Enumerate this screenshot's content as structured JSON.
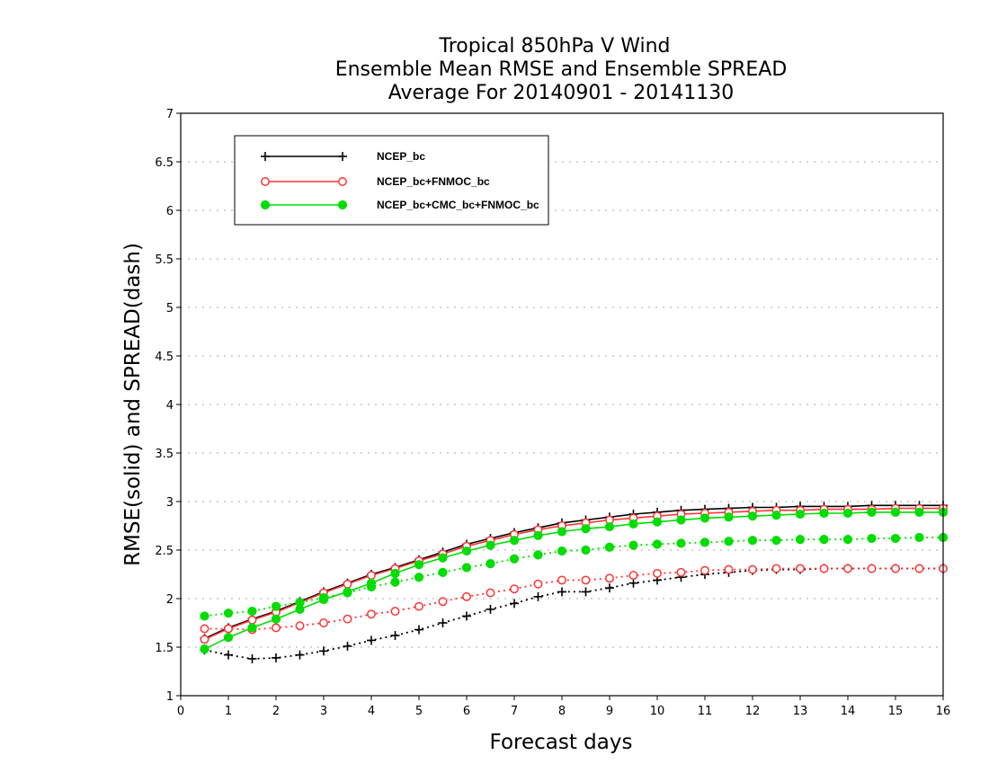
{
  "chart_data": {
    "type": "line",
    "title": [
      "Tropical 850hPa V Wind",
      "Ensemble Mean RMSE and Ensemble SPREAD",
      "Average For 20140901 - 20141130"
    ],
    "xlabel": "Forecast days",
    "ylabel": "RMSE(solid) and SPREAD(dash)",
    "xlim": [
      0,
      16
    ],
    "ylim": [
      1,
      7
    ],
    "xticks": [
      "0",
      "1",
      "2",
      "3",
      "4",
      "5",
      "6",
      "7",
      "8",
      "9",
      "10",
      "11",
      "12",
      "13",
      "14",
      "15",
      "16"
    ],
    "yticks": [
      "1",
      "1.5",
      "2",
      "2.5",
      "3",
      "3.5",
      "4",
      "4.5",
      "5",
      "5.5",
      "6",
      "6.5",
      "7"
    ],
    "grid": "horizontal-dotted",
    "legend_position": "top-left",
    "x": [
      0.5,
      1,
      1.5,
      2,
      2.5,
      3,
      3.5,
      4,
      4.5,
      5,
      5.5,
      6,
      6.5,
      7,
      7.5,
      8,
      8.5,
      9,
      9.5,
      10,
      10.5,
      11,
      11.5,
      12,
      12.5,
      13,
      13.5,
      14,
      14.5,
      15,
      15.5,
      16
    ],
    "series": [
      {
        "name": "NCEP_bc",
        "color": "#000000",
        "marker": "plus",
        "rmse": [
          1.59,
          1.7,
          1.79,
          1.87,
          1.97,
          2.07,
          2.16,
          2.25,
          2.32,
          2.4,
          2.48,
          2.56,
          2.62,
          2.68,
          2.73,
          2.78,
          2.81,
          2.84,
          2.87,
          2.89,
          2.91,
          2.92,
          2.93,
          2.94,
          2.94,
          2.95,
          2.95,
          2.95,
          2.96,
          2.96,
          2.96,
          2.96
        ],
        "spread": [
          1.47,
          1.42,
          1.38,
          1.39,
          1.42,
          1.46,
          1.51,
          1.57,
          1.62,
          1.68,
          1.75,
          1.82,
          1.89,
          1.95,
          2.02,
          2.07,
          2.07,
          2.11,
          2.16,
          2.19,
          2.22,
          2.25,
          2.27,
          2.29,
          2.3,
          2.3,
          2.31,
          2.31,
          2.31,
          2.31,
          2.31,
          2.31
        ]
      },
      {
        "name": "NCEP_bc+FNMOC_bc",
        "color": "#ff3333",
        "marker": "open-circle",
        "rmse": [
          1.58,
          1.69,
          1.78,
          1.86,
          1.96,
          2.06,
          2.15,
          2.24,
          2.31,
          2.39,
          2.46,
          2.54,
          2.6,
          2.66,
          2.71,
          2.75,
          2.78,
          2.81,
          2.83,
          2.85,
          2.87,
          2.88,
          2.89,
          2.9,
          2.91,
          2.91,
          2.92,
          2.92,
          2.92,
          2.93,
          2.93,
          2.93
        ],
        "spread": [
          1.69,
          1.69,
          1.68,
          1.7,
          1.72,
          1.75,
          1.79,
          1.84,
          1.87,
          1.92,
          1.97,
          2.02,
          2.06,
          2.1,
          2.15,
          2.19,
          2.19,
          2.21,
          2.24,
          2.26,
          2.27,
          2.29,
          2.3,
          2.3,
          2.31,
          2.31,
          2.31,
          2.31,
          2.31,
          2.31,
          2.31,
          2.31
        ]
      },
      {
        "name": "NCEP_bc+CMC_bc+FNMOC_bc",
        "color": "#00dd00",
        "marker": "filled-circle",
        "rmse": [
          1.48,
          1.6,
          1.7,
          1.79,
          1.89,
          1.99,
          2.07,
          2.16,
          2.26,
          2.35,
          2.42,
          2.49,
          2.55,
          2.6,
          2.65,
          2.69,
          2.72,
          2.74,
          2.77,
          2.79,
          2.81,
          2.83,
          2.84,
          2.85,
          2.86,
          2.87,
          2.88,
          2.88,
          2.89,
          2.89,
          2.89,
          2.89
        ],
        "spread": [
          1.82,
          1.85,
          1.87,
          1.92,
          1.96,
          2.01,
          2.06,
          2.12,
          2.17,
          2.22,
          2.27,
          2.32,
          2.36,
          2.41,
          2.45,
          2.49,
          2.5,
          2.53,
          2.55,
          2.56,
          2.57,
          2.58,
          2.59,
          2.6,
          2.6,
          2.61,
          2.61,
          2.61,
          2.62,
          2.62,
          2.63,
          2.63
        ]
      }
    ]
  }
}
